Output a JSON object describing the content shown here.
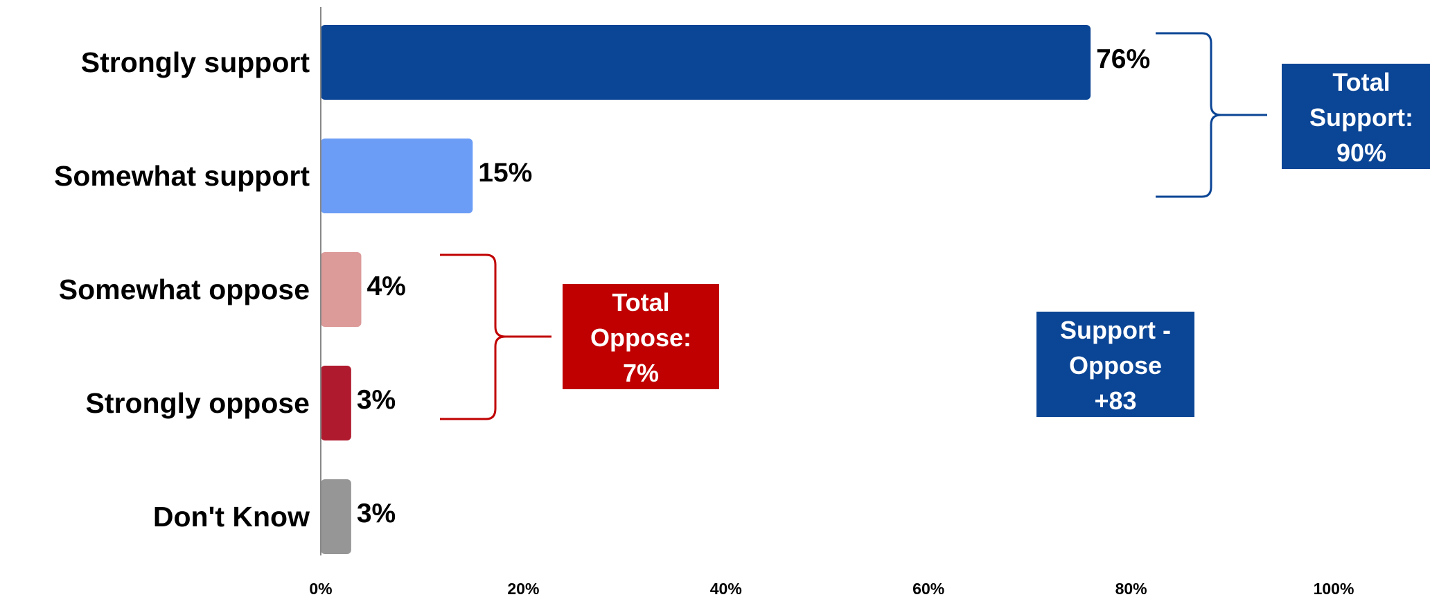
{
  "chart_data": {
    "type": "bar",
    "orientation": "horizontal",
    "categories": [
      "Strongly support",
      "Somewhat support",
      "Somewhat oppose",
      "Strongly oppose",
      "Don't Know"
    ],
    "values": [
      76,
      15,
      4,
      3,
      3
    ],
    "value_labels": [
      "76%",
      "15%",
      "4%",
      "3%",
      "3%"
    ],
    "bar_colors": [
      "#0B4595",
      "#6B9CF6",
      "#DC9A99",
      "#B01A2E",
      "#969696"
    ],
    "xlim": [
      0,
      100
    ],
    "x_ticks": [
      0,
      20,
      40,
      60,
      80,
      100
    ],
    "x_tick_labels": [
      "0%",
      "20%",
      "40%",
      "60%",
      "80%",
      "100%"
    ],
    "grid": false,
    "legend": "none",
    "annotations": [
      {
        "id": "total-support",
        "lines": [
          "Total",
          "Support:",
          "90%"
        ],
        "color": "#0B4595",
        "bracket_categories": [
          "Strongly support",
          "Somewhat support"
        ]
      },
      {
        "id": "total-oppose",
        "lines": [
          "Total",
          "Oppose:",
          "7%"
        ],
        "color": "#C00000",
        "bracket_categories": [
          "Somewhat oppose",
          "Strongly oppose"
        ]
      },
      {
        "id": "net",
        "lines": [
          "Support -",
          "Oppose",
          "+83"
        ],
        "color": "#0B4595"
      }
    ]
  }
}
